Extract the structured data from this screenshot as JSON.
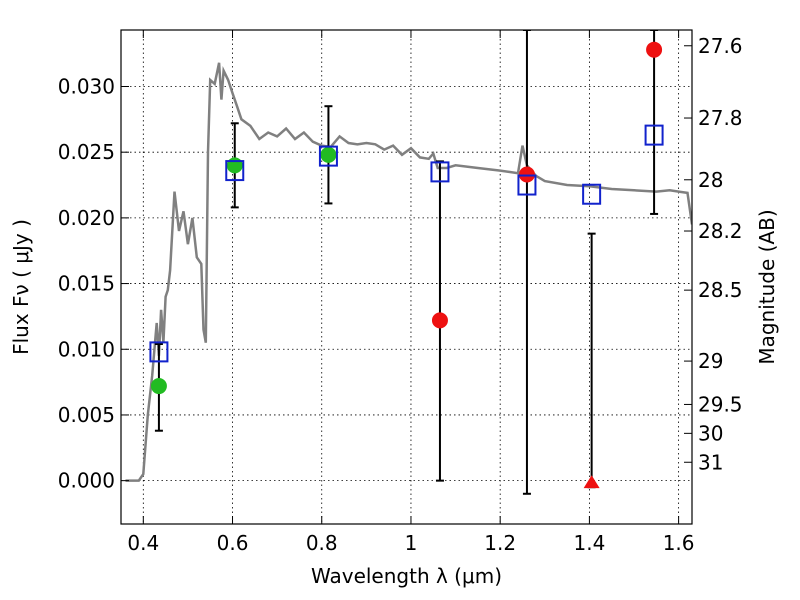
{
  "chart_data": {
    "type": "scatter",
    "title": "",
    "xlabel": "Wavelength  λ (μm)",
    "ylabel": "Flux  Fν  ( μJy )",
    "ylabel_right": "Magnitude (AB)",
    "xlim": [
      0.35,
      1.63
    ],
    "ylim": [
      -0.0033,
      0.0343
    ],
    "grid": true,
    "x_ticks": [
      0.4,
      0.6,
      0.8,
      1.0,
      1.2,
      1.4,
      1.6
    ],
    "x_tick_labels": [
      "0.4",
      "0.6",
      "0.8",
      "1",
      "1.2",
      "1.4",
      "1.6"
    ],
    "y_ticks": [
      0.0,
      0.005,
      0.01,
      0.015,
      0.02,
      0.025,
      0.03
    ],
    "y_tick_labels": [
      "0.000",
      "0.005",
      "0.010",
      "0.015",
      "0.020",
      "0.025",
      "0.030"
    ],
    "right_ticks": [
      {
        "label": "27.6",
        "flux": 0.0331
      },
      {
        "label": "27.8",
        "flux": 0.0276
      },
      {
        "label": "28",
        "flux": 0.0229
      },
      {
        "label": "28.2",
        "flux": 0.019
      },
      {
        "label": "28.5",
        "flux": 0.0145
      },
      {
        "label": "29",
        "flux": 0.0091
      },
      {
        "label": "29.5",
        "flux": 0.0058
      },
      {
        "label": "30",
        "flux": 0.0036
      },
      {
        "label": "31",
        "flux": 0.0014
      }
    ],
    "model_spectrum": {
      "color": "#808080",
      "x": [
        0.36,
        0.39,
        0.4,
        0.41,
        0.42,
        0.43,
        0.435,
        0.44,
        0.445,
        0.45,
        0.455,
        0.46,
        0.47,
        0.48,
        0.49,
        0.5,
        0.51,
        0.52,
        0.53,
        0.535,
        0.54,
        0.545,
        0.55,
        0.56,
        0.57,
        0.575,
        0.58,
        0.59,
        0.6,
        0.61,
        0.62,
        0.64,
        0.66,
        0.68,
        0.7,
        0.72,
        0.74,
        0.76,
        0.78,
        0.8,
        0.82,
        0.84,
        0.86,
        0.88,
        0.9,
        0.92,
        0.94,
        0.96,
        0.98,
        1.0,
        1.02,
        1.04,
        1.05,
        1.06,
        1.08,
        1.1,
        1.15,
        1.2,
        1.22,
        1.24,
        1.25,
        1.26,
        1.28,
        1.3,
        1.35,
        1.4,
        1.45,
        1.5,
        1.55,
        1.58,
        1.6,
        1.62,
        1.63
      ],
      "y": [
        0.0,
        0.0,
        0.0005,
        0.005,
        0.008,
        0.012,
        0.0095,
        0.013,
        0.0105,
        0.014,
        0.0145,
        0.016,
        0.022,
        0.019,
        0.0205,
        0.018,
        0.02,
        0.017,
        0.0165,
        0.0115,
        0.0105,
        0.025,
        0.0305,
        0.0302,
        0.0318,
        0.029,
        0.0312,
        0.0305,
        0.0295,
        0.0285,
        0.0275,
        0.027,
        0.026,
        0.0265,
        0.0262,
        0.0268,
        0.026,
        0.0265,
        0.0258,
        0.0255,
        0.0254,
        0.0262,
        0.0257,
        0.0256,
        0.0257,
        0.0256,
        0.0252,
        0.0255,
        0.0248,
        0.0253,
        0.0246,
        0.0245,
        0.0249,
        0.0238,
        0.0238,
        0.024,
        0.0238,
        0.0236,
        0.0235,
        0.0234,
        0.0255,
        0.024,
        0.0232,
        0.0228,
        0.0225,
        0.0224,
        0.0222,
        0.0221,
        0.022,
        0.0221,
        0.022,
        0.0219,
        0.0195
      ]
    },
    "error_bars": [
      {
        "x": 0.435,
        "low": 0.0038,
        "high": 0.0104
      },
      {
        "x": 0.605,
        "low": 0.0208,
        "high": 0.0272
      },
      {
        "x": 0.815,
        "low": 0.0211,
        "high": 0.0285
      },
      {
        "x": 1.065,
        "low": 0.0,
        "high": 0.0243
      },
      {
        "x": 1.26,
        "low": -0.001,
        "high": 0.0343
      },
      {
        "x": 1.405,
        "low": -0.0005,
        "high": 0.0188
      },
      {
        "x": 1.545,
        "low": 0.0203,
        "high": 0.0343
      }
    ],
    "series": [
      {
        "marker": "circle",
        "color": "#22bb22",
        "x": [
          0.435,
          0.605,
          0.815
        ],
        "y": [
          0.0072,
          0.024,
          0.0248
        ]
      },
      {
        "marker": "circle",
        "color": "#ee1111",
        "x": [
          1.065,
          1.26,
          1.545
        ],
        "y": [
          0.0122,
          0.0233,
          0.0328
        ]
      },
      {
        "marker": "triangle",
        "color": "#ee1111",
        "x": [
          1.405
        ],
        "y": [
          -0.0002
        ]
      },
      {
        "marker": "square-open",
        "color": "#1122cc",
        "x": [
          0.435,
          0.605,
          0.815,
          1.065,
          1.26,
          1.405,
          1.545
        ],
        "y": [
          0.0098,
          0.0236,
          0.0247,
          0.0235,
          0.0225,
          0.0218,
          0.0263
        ]
      }
    ]
  }
}
